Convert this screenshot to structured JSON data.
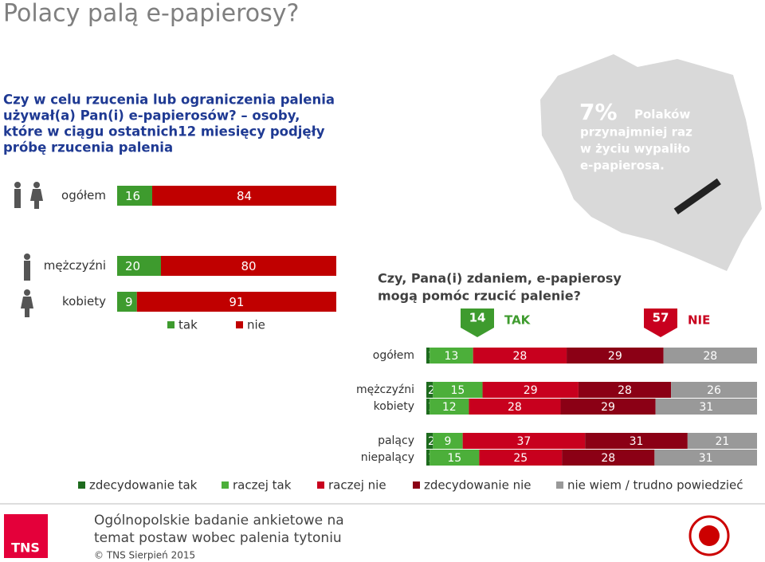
{
  "header": {
    "title": "Polacy palą e-papierosy?"
  },
  "stat": {
    "value": {
      "value": 7,
      "label": "7%"
    },
    "lines": [
      "Polaków",
      "przynajmniej raz",
      "w życiu wypaliło",
      "e-papierosa."
    ]
  },
  "chart_data": [
    {
      "type": "bar",
      "orientation": "horizontal",
      "stacked": true,
      "title_lines": [
        "Czy w celu rzucenia lub ograniczenia palenia",
        "używał(a) Pan(i) e-papierosów? – osoby,",
        "które w ciągu ostatnich12 miesięcy podjęły",
        "próbę rzucenia palenia"
      ],
      "categories": [
        "ogółem",
        "mężczyźni",
        "kobiety"
      ],
      "series": [
        {
          "name": "tak",
          "color": "#3e9b2e",
          "values": [
            16,
            20,
            9
          ]
        },
        {
          "name": "nie",
          "color": "#c00000",
          "values": [
            84,
            80,
            91
          ]
        }
      ]
    },
    {
      "type": "bar",
      "orientation": "horizontal",
      "stacked": true,
      "title_lines": [
        "Czy, Pana(i) zdaniem, e-papierosy",
        "mogą pomóc rzucić palenie?"
      ],
      "summary": [
        {
          "value": 14,
          "label": "TAK",
          "color": "#3e9b2e"
        },
        {
          "value": 57,
          "label": "NIE",
          "color": "#c8001e"
        }
      ],
      "categories": [
        "ogółem",
        "mężczyźni",
        "kobiety",
        "palący",
        "niepalący"
      ],
      "series": [
        {
          "name": "zdecydowanie tak",
          "color": "#1e6b1e",
          "values": [
            1,
            2,
            1,
            2,
            1
          ]
        },
        {
          "name": "raczej tak",
          "color": "#4caf3a",
          "values": [
            13,
            15,
            12,
            9,
            15
          ]
        },
        {
          "name": "raczej nie",
          "color": "#c8001e",
          "values": [
            28,
            29,
            28,
            37,
            25
          ]
        },
        {
          "name": "zdecydowanie nie",
          "color": "#8b0015",
          "values": [
            29,
            28,
            29,
            31,
            28
          ]
        },
        {
          "name": "nie wiem / trudno powiedzieć",
          "color": "#999999",
          "values": [
            28,
            26,
            31,
            21,
            31
          ]
        }
      ]
    }
  ],
  "footer": {
    "lines": [
      "Ogólnopolskie badanie ankietowe na",
      "temat postaw wobec palenia tytoniu"
    ],
    "copyright": "© TNS Sierpień 2015",
    "logo": "TNS"
  }
}
